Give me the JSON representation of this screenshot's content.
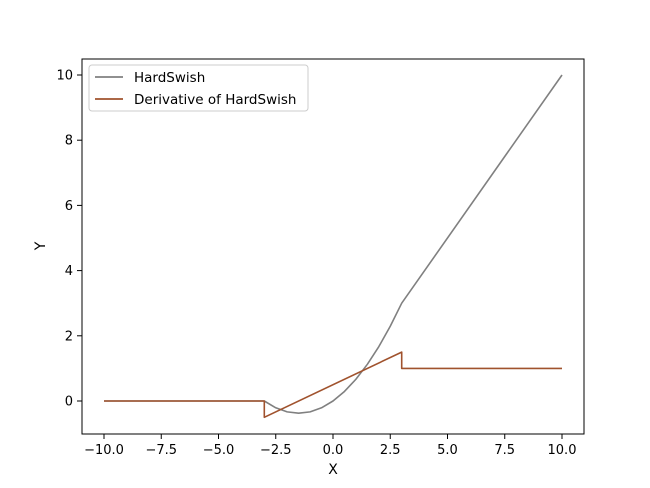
{
  "chart_data": {
    "type": "line",
    "xlabel": "X",
    "ylabel": "Y",
    "xlim": [
      -10.0,
      10.0
    ],
    "ylim": [
      -1.0,
      10.5
    ],
    "xticks": [
      -10.0,
      -7.5,
      -5.0,
      -2.5,
      0.0,
      2.5,
      5.0,
      7.5,
      10.0
    ],
    "xtick_labels": [
      "−10.0",
      "−7.5",
      "−5.0",
      "−2.5",
      "0.0",
      "2.5",
      "5.0",
      "7.5",
      "10.0"
    ],
    "yticks": [
      0,
      2,
      4,
      6,
      8,
      10
    ],
    "ytick_labels": [
      "0",
      "2",
      "4",
      "6",
      "8",
      "10"
    ],
    "grid": false,
    "legend_position": "top-left",
    "series": [
      {
        "name": "HardSwish",
        "color": "#808080",
        "x": [
          -10.0,
          -3.0,
          -2.5,
          -2.0,
          -1.5,
          -1.0,
          -0.5,
          0.0,
          0.5,
          1.0,
          1.5,
          2.0,
          2.5,
          3.0,
          10.0
        ],
        "y": [
          0.0,
          0.0,
          -0.208,
          -0.333,
          -0.375,
          -0.333,
          -0.208,
          0.0,
          0.292,
          0.667,
          1.125,
          1.667,
          2.292,
          3.0,
          10.0
        ]
      },
      {
        "name": "Derivative of HardSwish",
        "color": "#a0522d",
        "x": [
          -10.0,
          -3.0,
          -3.0,
          3.0,
          3.0,
          10.0
        ],
        "y": [
          0.0,
          0.0,
          -0.5,
          1.5,
          1.0,
          1.0
        ]
      }
    ]
  }
}
